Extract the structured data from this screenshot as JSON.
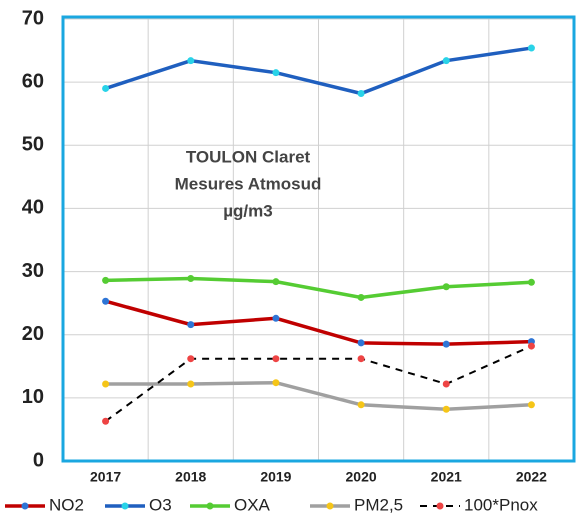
{
  "chart_data": {
    "type": "line",
    "annotation": [
      "TOULON Claret",
      "Mesures Atmosud",
      "µg/m3"
    ],
    "categories": [
      "2017",
      "2018",
      "2019",
      "2020",
      "2021",
      "2022"
    ],
    "series": [
      {
        "name": "NO2",
        "color": "#c00000",
        "marker_color": "#2e75d6",
        "dash": false,
        "values": [
          25.3,
          21.6,
          22.6,
          18.7,
          18.5,
          18.9
        ]
      },
      {
        "name": "O3",
        "color": "#1f5fbf",
        "marker_color": "#29d3e8",
        "dash": false,
        "values": [
          59.0,
          63.4,
          61.5,
          58.2,
          63.4,
          65.4
        ]
      },
      {
        "name": "OXA",
        "color": "#55cc33",
        "marker_color": "#55cc33",
        "dash": false,
        "values": [
          28.6,
          28.9,
          28.4,
          25.9,
          27.6,
          28.3
        ]
      },
      {
        "name": "PM2,5",
        "color": "#a0a0a0",
        "marker_color": "#f5c518",
        "dash": false,
        "values": [
          12.2,
          12.2,
          12.4,
          8.9,
          8.2,
          8.9
        ]
      },
      {
        "name": "100*Pnox",
        "color": "#000000",
        "marker_color": "#ee4444",
        "dash": true,
        "values": [
          6.3,
          16.2,
          16.2,
          16.2,
          12.2,
          18.2
        ]
      }
    ],
    "ylim": [
      0,
      70
    ],
    "yticks": [
      0,
      10,
      20,
      30,
      40,
      50,
      60,
      70
    ],
    "grid": true,
    "legend": "bottom"
  }
}
